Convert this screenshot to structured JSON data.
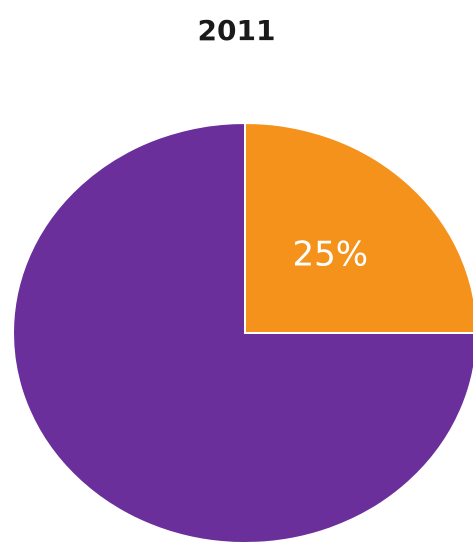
{
  "chart_data": {
    "type": "pie",
    "title": "2011",
    "slices": [
      {
        "value": 25,
        "label": "25%",
        "color": "#f4921c"
      },
      {
        "value": 75,
        "label": "",
        "color": "#6b2f9b"
      }
    ],
    "start_angle_deg": 0,
    "direction": "clockwise",
    "legend": "none"
  }
}
